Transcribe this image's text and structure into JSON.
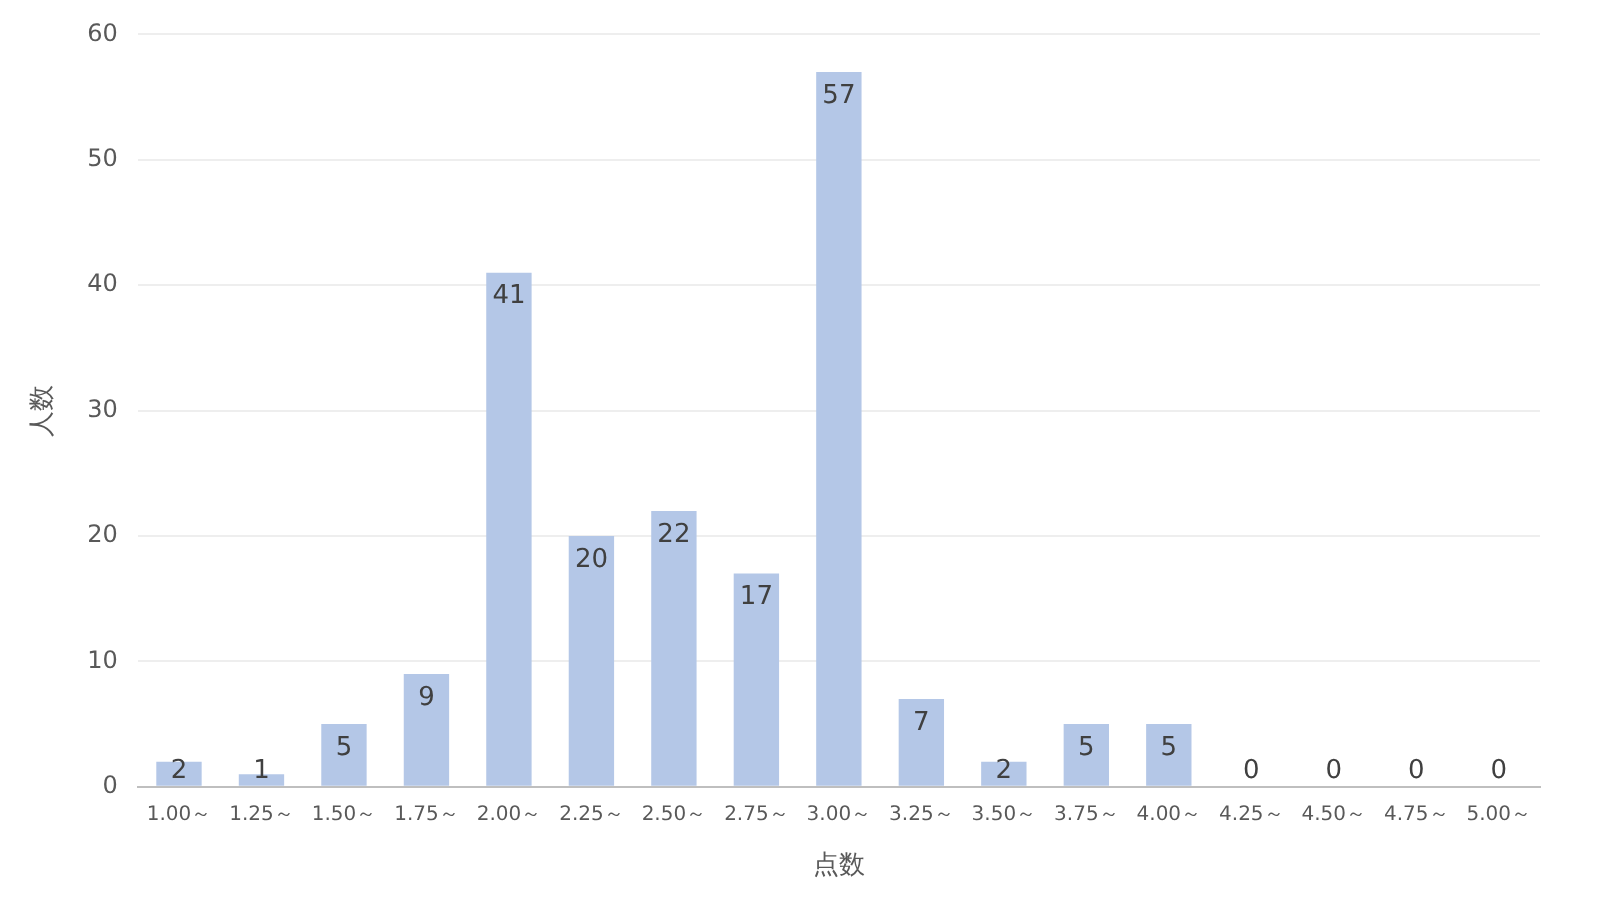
{
  "chart_data": {
    "type": "bar",
    "xlabel": "点数",
    "ylabel": "人数",
    "categories": [
      "1.00～",
      "1.25～",
      "1.50～",
      "1.75～",
      "2.00～",
      "2.25～",
      "2.50～",
      "2.75～",
      "3.00～",
      "3.25～",
      "3.50～",
      "3.75～",
      "4.00～",
      "4.25～",
      "4.50～",
      "4.75～",
      "5.00～"
    ],
    "values": [
      2,
      1,
      5,
      9,
      41,
      20,
      22,
      17,
      57,
      7,
      2,
      5,
      5,
      0,
      0,
      0,
      0
    ],
    "color": "#b4c7e7",
    "ylim": [
      0,
      60
    ],
    "yticks": [
      0,
      10,
      20,
      30,
      40,
      50,
      60
    ],
    "grid": "y",
    "data_labels": true
  }
}
